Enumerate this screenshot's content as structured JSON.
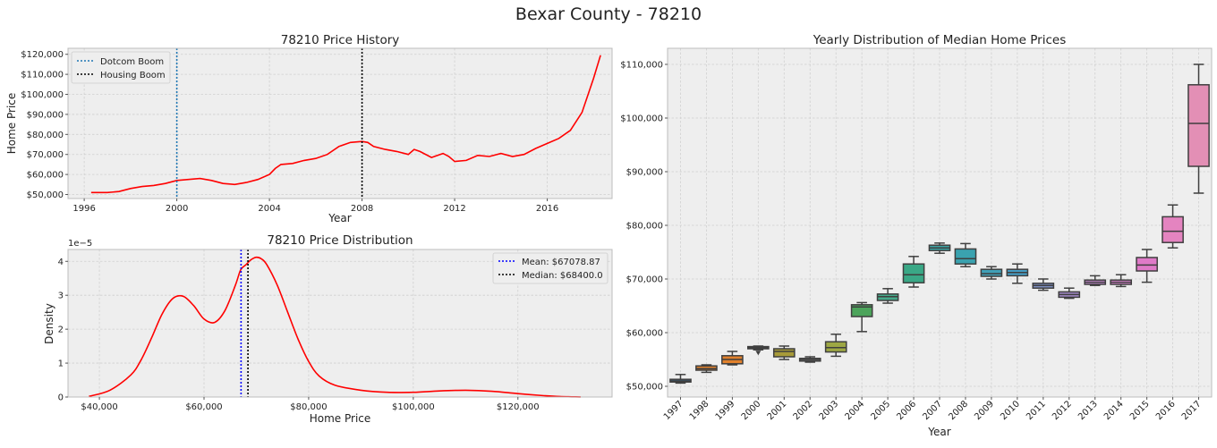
{
  "suptitle": "Bexar County - 78210",
  "history": {
    "title": "78210 Price History",
    "xlabel": "Year",
    "ylabel": "Home Price",
    "xticks": [
      "1996",
      "2000",
      "2004",
      "2008",
      "2012",
      "2016"
    ],
    "yticks": [
      "$50,000",
      "$60,000",
      "$70,000",
      "$80,000",
      "$90,000",
      "$100,000",
      "$110,000",
      "$120,000"
    ],
    "legend": [
      "Dotcom Boom",
      "Housing Boom"
    ]
  },
  "density": {
    "title": "78210 Price Distribution",
    "xlabel": "Home Price",
    "ylabel": "Density",
    "offset_text": "1e−5",
    "xticks": [
      "$40,000",
      "$60,000",
      "$80,000",
      "$100,000",
      "$120,000"
    ],
    "yticks": [
      "0",
      "1",
      "2",
      "3",
      "4"
    ],
    "legend": [
      "Mean: $67078.87",
      "Median: $68400.0"
    ]
  },
  "box": {
    "title": "Yearly Distribution of Median Home Prices",
    "xlabel": "Year",
    "yticks": [
      "$50,000",
      "$60,000",
      "$70,000",
      "$80,000",
      "$90,000",
      "$100,000",
      "$110,000"
    ]
  },
  "chart_data": [
    {
      "type": "line",
      "title": "78210 Price History",
      "xlabel": "Year",
      "ylabel": "Home Price",
      "xlim": [
        1995.3,
        2018.8
      ],
      "ylim": [
        48000,
        123000
      ],
      "grid": true,
      "legend_position": "top-left",
      "color": "#ff0000",
      "x": [
        1996.3,
        1997.0,
        1997.5,
        1998.0,
        1998.5,
        1999.0,
        1999.5,
        2000.0,
        2000.5,
        2001.0,
        2001.5,
        2002.0,
        2002.5,
        2003.0,
        2003.5,
        2004.0,
        2004.25,
        2004.5,
        2005.0,
        2005.5,
        2006.0,
        2006.5,
        2007.0,
        2007.5,
        2008.0,
        2008.25,
        2008.5,
        2009.0,
        2009.5,
        2010.0,
        2010.25,
        2010.5,
        2011.0,
        2011.5,
        2011.75,
        2012.0,
        2012.5,
        2013.0,
        2013.5,
        2014.0,
        2014.5,
        2015.0,
        2015.5,
        2016.0,
        2016.5,
        2017.0,
        2017.5,
        2018.0,
        2018.3
      ],
      "y": [
        51000,
        51000,
        51500,
        53000,
        54000,
        54500,
        55500,
        57000,
        57500,
        58000,
        57000,
        55500,
        55000,
        56000,
        57500,
        60000,
        63000,
        65000,
        65500,
        67000,
        68000,
        70000,
        74000,
        76000,
        76500,
        76000,
        74000,
        72500,
        71500,
        70000,
        72500,
        71500,
        68500,
        70500,
        69000,
        66500,
        67000,
        69500,
        69000,
        70500,
        69000,
        70000,
        73000,
        75500,
        78000,
        82000,
        91000,
        108000,
        119500
      ],
      "vlines": [
        {
          "name": "Dotcom Boom",
          "x": 2000,
          "color": "#1f77b4"
        },
        {
          "name": "Housing Boom",
          "x": 2008,
          "color": "#000000"
        }
      ]
    },
    {
      "type": "line",
      "title": "78210 Price Distribution",
      "xlabel": "Home Price",
      "ylabel": "Density",
      "xlim": [
        34000,
        138000
      ],
      "ylim": [
        0,
        4.35e-05
      ],
      "grid": true,
      "legend_position": "top-right",
      "color": "#ff0000",
      "x": [
        38000,
        42000,
        46000,
        48000,
        50000,
        52000,
        54000,
        56000,
        58000,
        60000,
        62000,
        64000,
        66000,
        67000,
        68000,
        69000,
        70000,
        71000,
        72000,
        74000,
        76000,
        78000,
        80000,
        82000,
        85000,
        90000,
        95000,
        100000,
        105000,
        110000,
        115000,
        120000,
        125000,
        128000,
        132000
      ],
      "y": [
        2e-07,
        2e-06,
        6.5e-06,
        1.1e-05,
        1.75e-05,
        2.45e-05,
        2.9e-05,
        2.97e-05,
        2.7e-05,
        2.3e-05,
        2.2e-05,
        2.55e-05,
        3.3e-05,
        3.75e-05,
        3.9e-05,
        4.05e-05,
        4.12e-05,
        4.07e-05,
        3.9e-05,
        3.3e-05,
        2.5e-05,
        1.7e-05,
        1.05e-05,
        6.2e-06,
        3.5e-06,
        2e-06,
        1.4e-06,
        1.4e-06,
        1.8e-06,
        2e-06,
        1.7e-06,
        1e-06,
        4e-07,
        1.5e-07,
        3e-08
      ],
      "vlines": [
        {
          "name": "Mean: $67078.87",
          "x": 67078.87,
          "color": "#0000ff"
        },
        {
          "name": "Median: $68400.0",
          "x": 68400,
          "color": "#000000"
        }
      ]
    },
    {
      "type": "box",
      "title": "Yearly Distribution of Median Home Prices",
      "xlabel": "Year",
      "ylim": [
        48000,
        113000
      ],
      "grid": true,
      "categories": [
        "1997",
        "1998",
        "1999",
        "2000",
        "2001",
        "2002",
        "2003",
        "2004",
        "2005",
        "2006",
        "2007",
        "2008",
        "2009",
        "2010",
        "2011",
        "2012",
        "2013",
        "2014",
        "2015",
        "2016",
        "2017"
      ],
      "colors": [
        "#3274a1",
        "#e1812c",
        "#e1812c",
        "#c4c4c4",
        "#a79a39",
        "#8c8c8c",
        "#9da744",
        "#4ca45b",
        "#46a98a",
        "#3aa886",
        "#3ba3a3",
        "#3aa2af",
        "#3fa0b8",
        "#459dc5",
        "#7e90c4",
        "#a48ac9",
        "#c78ad2",
        "#e086d6",
        "#e07ac8",
        "#e484c0",
        "#e38fb5"
      ],
      "whisker_low": [
        50600,
        52600,
        54000,
        56800,
        55000,
        54500,
        55600,
        60200,
        65500,
        68500,
        74800,
        72300,
        70000,
        69200,
        67900,
        66400,
        68800,
        68600,
        69400,
        75800,
        86000
      ],
      "q1": [
        50800,
        53000,
        54200,
        57000,
        55500,
        54700,
        56400,
        63000,
        66000,
        69300,
        75300,
        72800,
        70500,
        70600,
        68300,
        66600,
        69000,
        69000,
        71500,
        76800,
        91000
      ],
      "median": [
        51000,
        53300,
        55000,
        57200,
        56500,
        55000,
        57200,
        64800,
        66700,
        70800,
        75800,
        73800,
        71000,
        71200,
        68800,
        67100,
        69400,
        69400,
        72600,
        78900,
        99000
      ],
      "q3": [
        51300,
        53800,
        55700,
        57400,
        57000,
        55200,
        58300,
        65200,
        67200,
        72800,
        76300,
        75600,
        71800,
        71800,
        69200,
        67600,
        69800,
        69800,
        74000,
        81600,
        106200
      ],
      "whisker_high": [
        52200,
        54000,
        56500,
        57500,
        57500,
        55500,
        59700,
        65600,
        68200,
        74200,
        76700,
        76600,
        72300,
        72800,
        70000,
        68300,
        70600,
        70800,
        75500,
        83800,
        110000
      ],
      "outliers": [
        [],
        [],
        [],
        [
          56300
        ],
        [],
        [],
        [],
        [],
        [],
        [],
        [],
        [],
        [],
        [],
        [],
        [],
        [],
        [],
        [],
        [],
        []
      ]
    }
  ]
}
